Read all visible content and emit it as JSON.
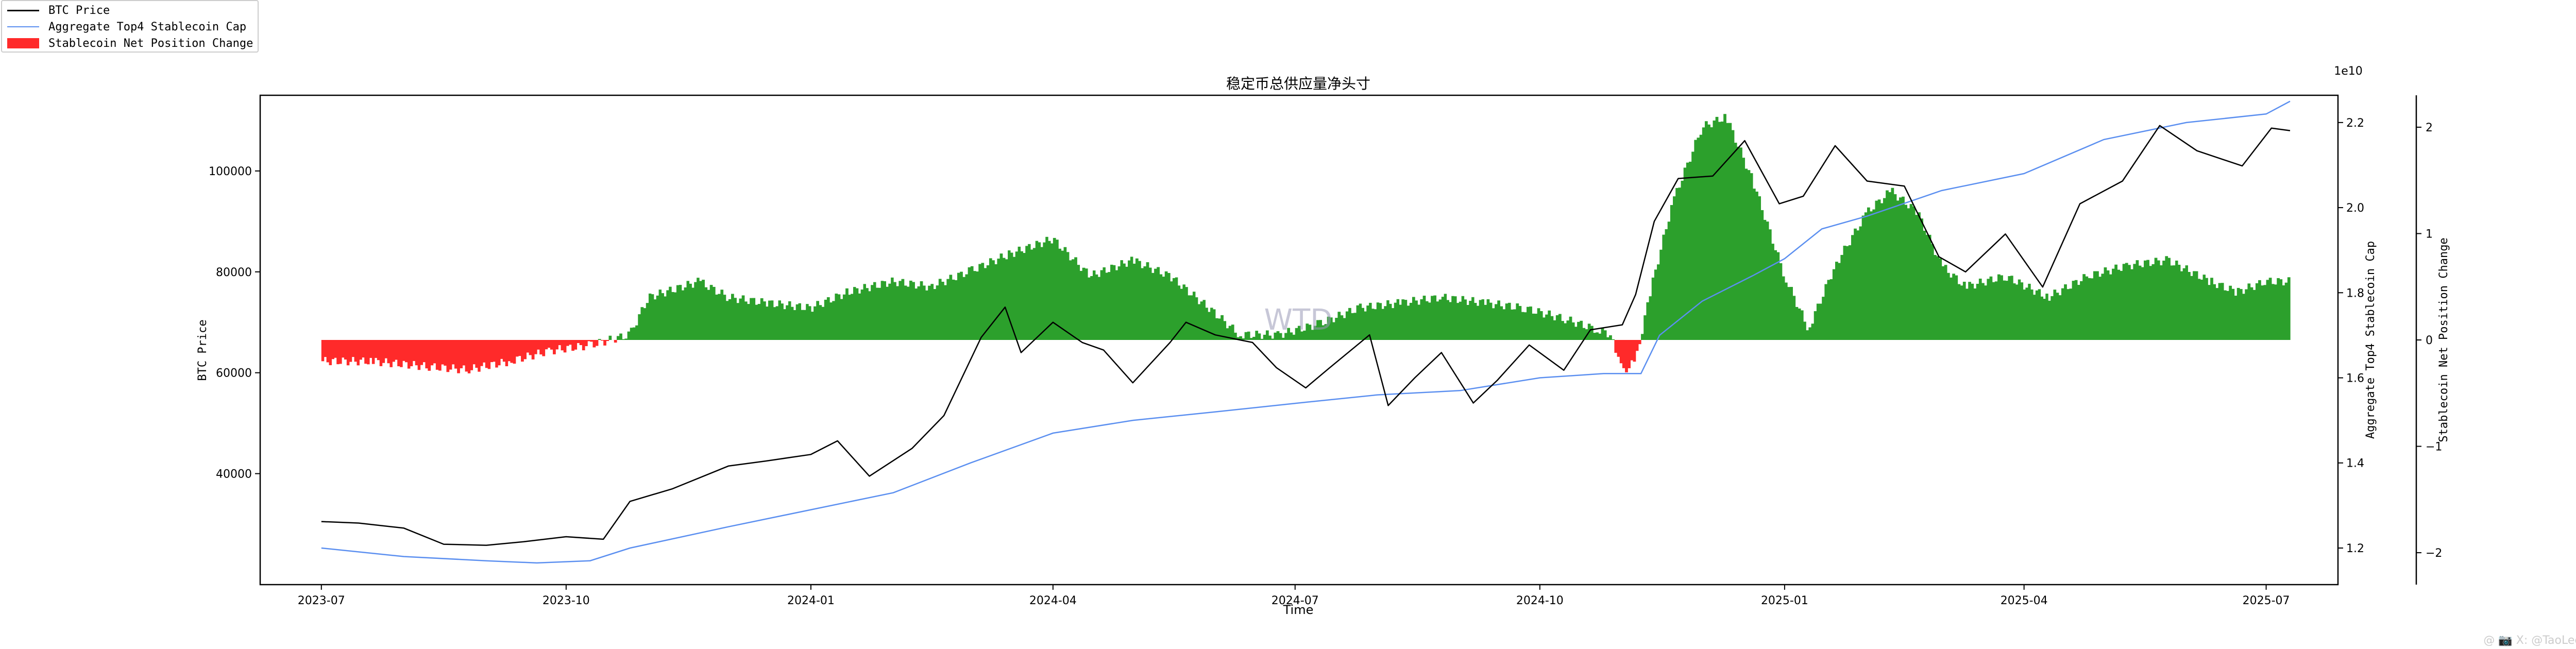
{
  "legend": {
    "btc_label": "BTC Price",
    "cap_label": "Aggregate Top4 Stablecoin Cap",
    "net_label": "Stablecoin Net Position Change"
  },
  "overlay_text": "WTD",
  "footer_watermark": "@ 📷 X: @TaoLeeX",
  "colors": {
    "btc": "#000000",
    "cap": "#5b8ff0",
    "net_pos": "#2ca02c",
    "net_neg": "#ff2a2a"
  },
  "chart_data": {
    "type": "line",
    "title": "稳定币总供应量净头寸",
    "xlabel": "Time",
    "ylabel_left": "BTC Price",
    "ylabel_right1": "Aggregate Top4 Stablecoin Cap",
    "ylabel_right2": "Stablecoin Net Position Change",
    "right1_offset_label": "1e10",
    "x_range": [
      "2023-06-08",
      "2025-07-28"
    ],
    "x_ticks": [
      "2023-07",
      "2023-10",
      "2024-01",
      "2024-04",
      "2024-07",
      "2024-10",
      "2025-01",
      "2025-04",
      "2025-07"
    ],
    "left_range": [
      18000,
      115000
    ],
    "left_ticks": [
      40000,
      60000,
      80000,
      100000
    ],
    "right1_range": [
      1.114,
      2.264
    ],
    "right1_ticks": [
      1.2,
      1.4,
      1.6,
      1.8,
      2.0,
      2.2
    ],
    "right2_range": [
      -2.3,
      2.3
    ],
    "right2_ticks": [
      -2,
      -1,
      0,
      1,
      2
    ],
    "series": [
      {
        "name": "BTC Price",
        "x": [
          "2023-07-01",
          "2023-07-15",
          "2023-08-01",
          "2023-08-16",
          "2023-09-01",
          "2023-09-15",
          "2023-10-01",
          "2023-10-15",
          "2023-10-25",
          "2023-11-10",
          "2023-12-01",
          "2023-12-15",
          "2024-01-01",
          "2024-01-11",
          "2024-01-23",
          "2024-02-08",
          "2024-02-20",
          "2024-03-05",
          "2024-03-14",
          "2024-03-20",
          "2024-04-01",
          "2024-04-12",
          "2024-04-20",
          "2024-05-01",
          "2024-05-15",
          "2024-05-21",
          "2024-06-01",
          "2024-06-15",
          "2024-06-24",
          "2024-07-05",
          "2024-07-14",
          "2024-07-29",
          "2024-08-05",
          "2024-08-15",
          "2024-08-25",
          "2024-09-06",
          "2024-09-15",
          "2024-09-27",
          "2024-10-10",
          "2024-10-20",
          "2024-11-01",
          "2024-11-06",
          "2024-11-13",
          "2024-11-22",
          "2024-12-05",
          "2024-12-17",
          "2024-12-30",
          "2025-01-08",
          "2025-01-20",
          "2025-02-01",
          "2025-02-15",
          "2025-02-28",
          "2025-03-10",
          "2025-03-25",
          "2025-04-08",
          "2025-04-22",
          "2025-05-08",
          "2025-05-22",
          "2025-06-05",
          "2025-06-22",
          "2025-07-03",
          "2025-07-10"
        ],
        "values": [
          30500,
          30200,
          29200,
          26000,
          25800,
          26500,
          27500,
          27000,
          34500,
          37000,
          41500,
          42500,
          43800,
          46500,
          39500,
          45000,
          51500,
          67000,
          73000,
          64000,
          70000,
          66000,
          64500,
          58000,
          66000,
          70000,
          67500,
          66000,
          61000,
          57000,
          61000,
          67500,
          53500,
          59000,
          64000,
          54000,
          58500,
          65500,
          60500,
          68500,
          69500,
          75500,
          90000,
          98500,
          99000,
          106000,
          93500,
          95000,
          105000,
          98000,
          97000,
          83000,
          80000,
          87500,
          77000,
          93500,
          98000,
          109000,
          104000,
          101000,
          108500,
          108000
        ]
      },
      {
        "name": "Aggregate Top4 Stablecoin Cap",
        "x": [
          "2023-07-01",
          "2023-08-01",
          "2023-09-01",
          "2023-09-20",
          "2023-10-10",
          "2023-10-25",
          "2023-12-01",
          "2024-01-01",
          "2024-02-01",
          "2024-03-01",
          "2024-04-01",
          "2024-05-01",
          "2024-06-01",
          "2024-07-01",
          "2024-08-01",
          "2024-09-01",
          "2024-10-01",
          "2024-10-25",
          "2024-11-08",
          "2024-11-15",
          "2024-12-01",
          "2024-12-20",
          "2025-01-01",
          "2025-01-15",
          "2025-02-01",
          "2025-03-01",
          "2025-04-01",
          "2025-05-01",
          "2025-06-01",
          "2025-07-01",
          "2025-07-10"
        ],
        "values": [
          1.2,
          1.18,
          1.17,
          1.165,
          1.17,
          1.2,
          1.25,
          1.29,
          1.33,
          1.4,
          1.47,
          1.5,
          1.52,
          1.54,
          1.56,
          1.57,
          1.6,
          1.61,
          1.61,
          1.7,
          1.78,
          1.84,
          1.88,
          1.95,
          1.98,
          2.04,
          2.08,
          2.16,
          2.2,
          2.22,
          2.25
        ]
      },
      {
        "name": "Stablecoin Net Position Change",
        "x": [
          "2023-07-01",
          "2023-07-20",
          "2023-08-10",
          "2023-08-25",
          "2023-09-10",
          "2023-09-25",
          "2023-10-10",
          "2023-10-25",
          "2023-11-01",
          "2023-11-20",
          "2023-12-01",
          "2023-12-15",
          "2024-01-01",
          "2024-01-15",
          "2024-02-01",
          "2024-02-15",
          "2024-03-01",
          "2024-03-15",
          "2024-04-01",
          "2024-04-15",
          "2024-05-01",
          "2024-05-15",
          "2024-06-01",
          "2024-06-10",
          "2024-06-25",
          "2024-07-10",
          "2024-07-25",
          "2024-08-10",
          "2024-08-25",
          "2024-09-10",
          "2024-09-25",
          "2024-10-10",
          "2024-10-22",
          "2024-10-28",
          "2024-11-01",
          "2024-11-06",
          "2024-11-12",
          "2024-11-20",
          "2024-12-01",
          "2024-12-10",
          "2024-12-20",
          "2025-01-01",
          "2025-01-10",
          "2025-01-20",
          "2025-02-01",
          "2025-02-10",
          "2025-02-20",
          "2025-03-01",
          "2025-03-10",
          "2025-03-25",
          "2025-04-10",
          "2025-04-25",
          "2025-05-10",
          "2025-05-25",
          "2025-06-10",
          "2025-06-20",
          "2025-07-01",
          "2025-07-10"
        ],
        "values": [
          -0.2,
          -0.2,
          -0.25,
          -0.28,
          -0.2,
          -0.1,
          -0.05,
          0.05,
          0.4,
          0.55,
          0.4,
          0.35,
          0.3,
          0.45,
          0.55,
          0.5,
          0.65,
          0.8,
          0.95,
          0.6,
          0.75,
          0.6,
          0.25,
          0.05,
          0.05,
          0.15,
          0.3,
          0.35,
          0.4,
          0.35,
          0.3,
          0.2,
          0.1,
          0.05,
          -0.3,
          -0.2,
          0.5,
          1.3,
          2.0,
          2.1,
          1.5,
          0.6,
          0.1,
          0.7,
          1.2,
          1.4,
          1.2,
          0.7,
          0.5,
          0.6,
          0.4,
          0.6,
          0.7,
          0.75,
          0.55,
          0.45,
          0.55,
          0.55
        ]
      }
    ],
    "grid": false,
    "legend_position": "top-left"
  }
}
